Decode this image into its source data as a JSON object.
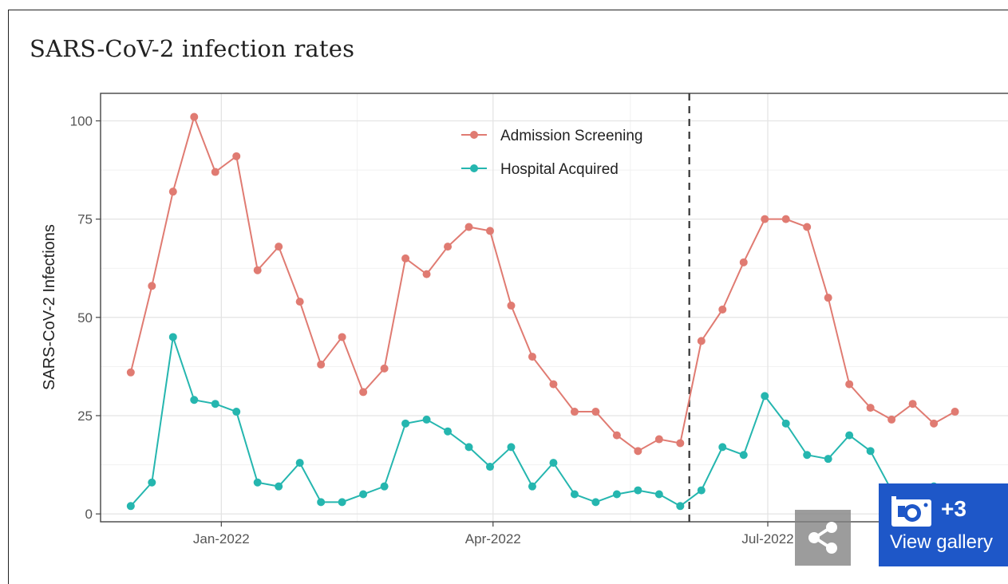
{
  "page": {
    "title": "SARS-CoV-2 infection rates"
  },
  "chart_data": {
    "type": "line",
    "title": "SARS-CoV-2 infection rates",
    "xlabel": "",
    "ylabel": "SARS-CoV-2 Infections",
    "ylim": [
      -2,
      107
    ],
    "yticks": [
      0,
      25,
      50,
      75,
      100
    ],
    "xlim": [
      "2021-11-22",
      "2022-09-22"
    ],
    "xticks": [
      {
        "date": "2022-01-01",
        "label": "Jan-2022"
      },
      {
        "date": "2022-04-01",
        "label": "Apr-2022"
      },
      {
        "date": "2022-07-01",
        "label": "Jul-2022"
      }
    ],
    "vline": "2022-06-05",
    "grid": true,
    "legend": "top-center",
    "x": [
      "2021-12-02",
      "2021-12-09",
      "2021-12-16",
      "2021-12-23",
      "2021-12-30",
      "2022-01-06",
      "2022-01-13",
      "2022-01-20",
      "2022-01-27",
      "2022-02-03",
      "2022-02-10",
      "2022-02-17",
      "2022-02-24",
      "2022-03-03",
      "2022-03-10",
      "2022-03-17",
      "2022-03-24",
      "2022-03-31",
      "2022-04-07",
      "2022-04-14",
      "2022-04-21",
      "2022-04-28",
      "2022-05-05",
      "2022-05-12",
      "2022-05-19",
      "2022-05-26",
      "2022-06-02",
      "2022-06-09",
      "2022-06-16",
      "2022-06-23",
      "2022-06-30",
      "2022-07-07",
      "2022-07-14",
      "2022-07-21",
      "2022-07-28",
      "2022-08-04",
      "2022-08-11",
      "2022-08-18",
      "2022-08-25",
      "2022-09-01",
      "2022-09-08",
      "2022-09-15"
    ],
    "series": [
      {
        "name": "Admission Screening",
        "color": "#E07B72",
        "values": [
          36,
          58,
          82,
          101,
          87,
          91,
          62,
          68,
          54,
          38,
          45,
          31,
          37,
          65,
          61,
          68,
          73,
          72,
          53,
          40,
          33,
          26,
          26,
          20,
          16,
          19,
          18,
          44,
          52,
          64,
          75,
          75,
          73,
          55,
          33,
          27,
          24,
          28,
          23,
          26,
          null,
          null
        ]
      },
      {
        "name": "Hospital Acquired",
        "color": "#25B6AF",
        "values": [
          2,
          8,
          45,
          29,
          28,
          26,
          8,
          7,
          13,
          3,
          3,
          5,
          7,
          23,
          24,
          21,
          17,
          12,
          17,
          7,
          13,
          5,
          3,
          5,
          6,
          5,
          2,
          6,
          17,
          15,
          30,
          23,
          15,
          14,
          20,
          16,
          6,
          4,
          7,
          6,
          null,
          null
        ]
      }
    ]
  },
  "overlay": {
    "gallery_count": "+3",
    "gallery_label": "View gallery",
    "share_icon": "share-icon",
    "camera_icon": "camera-icon"
  }
}
